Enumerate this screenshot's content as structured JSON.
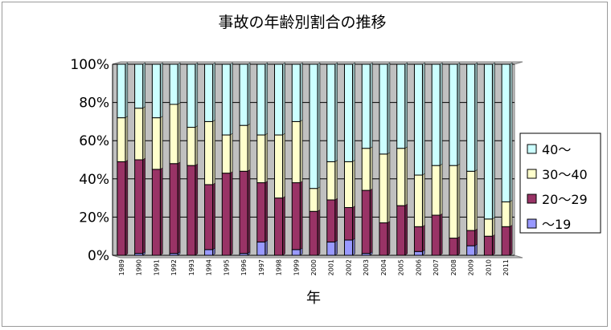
{
  "chart_data": {
    "type": "bar",
    "stacked": true,
    "percent": true,
    "title": "事故の年齢別割合の推移",
    "xlabel": "年",
    "ylabel": "",
    "ylim": [
      0,
      100
    ],
    "yticks": [
      "0%",
      "20%",
      "40%",
      "60%",
      "80%",
      "100%"
    ],
    "categories": [
      "1989",
      "1990",
      "1991",
      "1992",
      "1993",
      "1994",
      "1995",
      "1996",
      "1997",
      "1998",
      "1999",
      "2000",
      "2001",
      "2002",
      "2003",
      "2004",
      "2005",
      "2006",
      "2007",
      "2008",
      "2009",
      "2010",
      "2011"
    ],
    "series": [
      {
        "name": "～19",
        "color": "#9999ff",
        "values": [
          0,
          1,
          0,
          1,
          0,
          3,
          0,
          1,
          7,
          0,
          3,
          0,
          7,
          8,
          1,
          0,
          0,
          2,
          0,
          0,
          5,
          0,
          0
        ]
      },
      {
        "name": "20～29",
        "color": "#993366",
        "values": [
          49,
          49,
          45,
          47,
          47,
          34,
          43,
          43,
          31,
          30,
          35,
          23,
          22,
          17,
          33,
          17,
          26,
          13,
          21,
          9,
          8,
          10,
          15
        ]
      },
      {
        "name": "30～40",
        "color": "#ffffcc",
        "values": [
          23,
          27,
          27,
          31,
          20,
          33,
          20,
          24,
          25,
          33,
          32,
          12,
          20,
          24,
          22,
          36,
          30,
          27,
          26,
          38,
          31,
          9,
          13
        ]
      },
      {
        "name": "40～",
        "color": "#ccffff",
        "values": [
          28,
          23,
          28,
          21,
          33,
          30,
          37,
          32,
          37,
          37,
          30,
          65,
          51,
          51,
          44,
          47,
          44,
          58,
          53,
          53,
          56,
          81,
          72
        ]
      }
    ],
    "legend_position": "right",
    "grid": true
  }
}
